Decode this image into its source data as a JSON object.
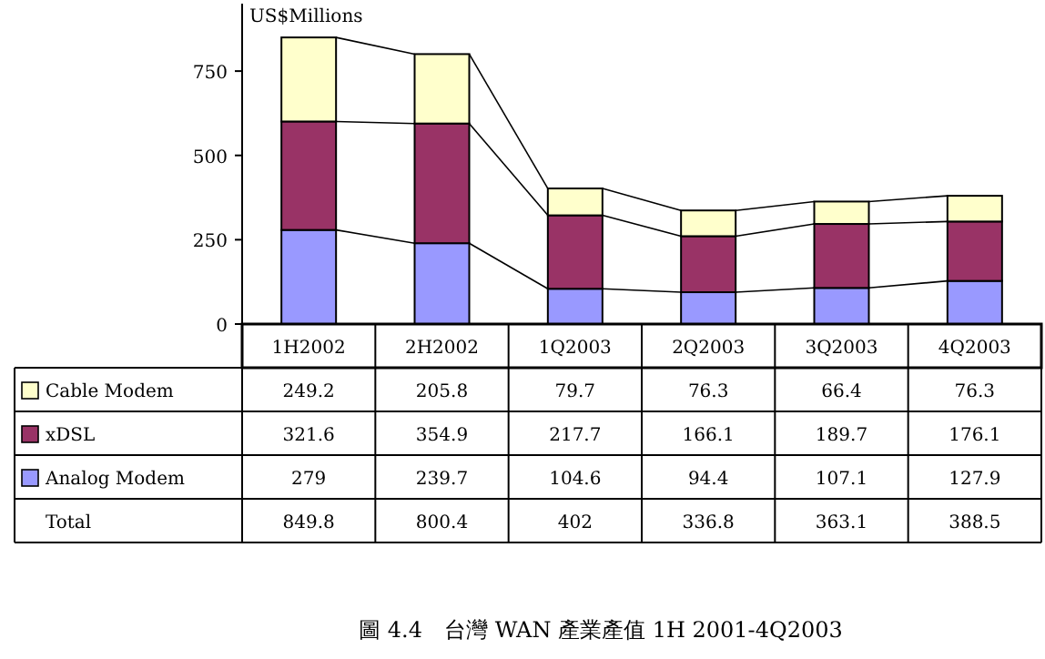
{
  "chart_data": {
    "type": "bar",
    "stacked": true,
    "ylabel": "US$Millions",
    "categories": [
      "1H2002",
      "2H2002",
      "1Q2003",
      "2Q2003",
      "3Q2003",
      "4Q2003"
    ],
    "series": [
      {
        "name": "Analog Modem",
        "color": "#9999ff",
        "values": [
          279,
          239.7,
          104.6,
          94.4,
          107.1,
          127.9
        ]
      },
      {
        "name": "xDSL",
        "color": "#993366",
        "values": [
          321.6,
          354.9,
          217.7,
          166.1,
          189.7,
          176.1
        ]
      },
      {
        "name": "Cable Modem",
        "color": "#ffffcc",
        "values": [
          249.2,
          205.8,
          79.7,
          76.3,
          66.4,
          76.3
        ]
      }
    ],
    "ylim": [
      0,
      950
    ],
    "yticks": [
      0,
      250,
      500,
      750
    ],
    "data_labels": true,
    "legend": "bottom",
    "annotations": [
      "Total",
      "849.8",
      "800.4",
      "402",
      "336.8",
      "363.1",
      "388.5",
      "圖 4.4　台灣 WAN 產業產值 1H 2001-4Q2003"
    ]
  }
}
